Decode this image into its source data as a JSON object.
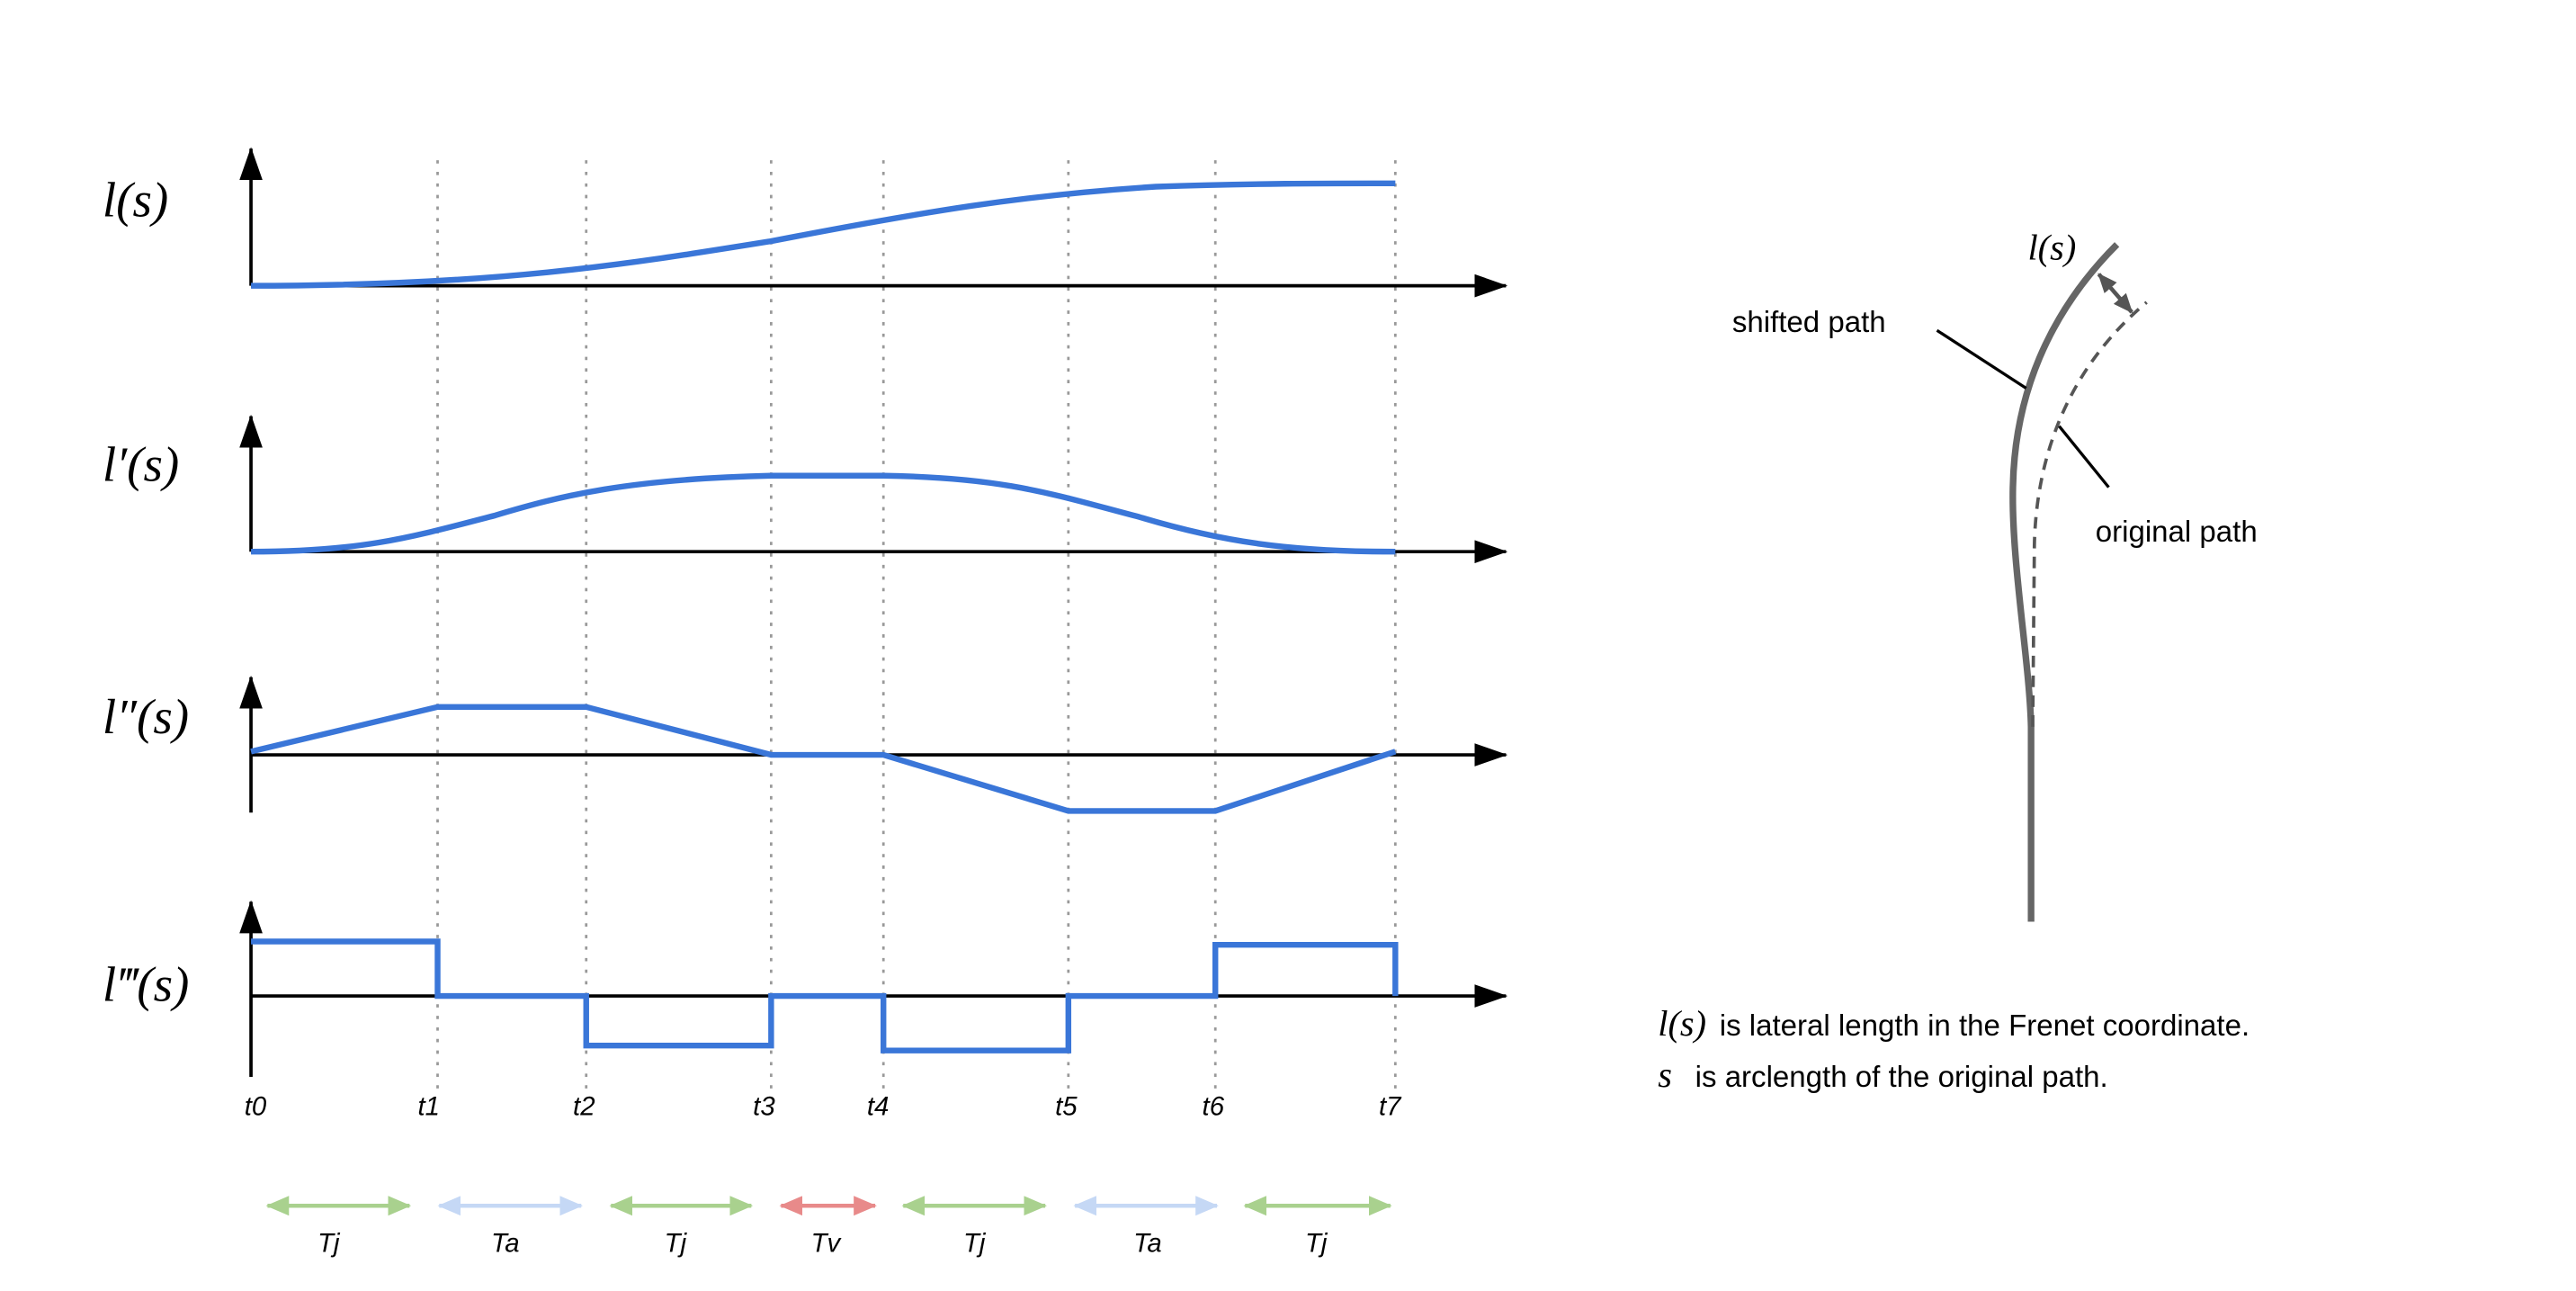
{
  "panels": [
    {
      "label": "l(s)"
    },
    {
      "label": "l′(s)"
    },
    {
      "label": "l″(s)"
    },
    {
      "label": "l‴(s)"
    }
  ],
  "time_ticks": [
    "t0",
    "t1",
    "t2",
    "t3",
    "t4",
    "t5",
    "t6",
    "t7"
  ],
  "segments": [
    "Tj",
    "Ta",
    "Tj",
    "Tv",
    "Tj",
    "Ta",
    "Tj"
  ],
  "path_diagram": {
    "offset_label": "l(s)",
    "shifted_label": "shifted path",
    "original_label": "original path"
  },
  "captions": [
    {
      "symbol": "l(s)",
      "text": "is lateral length in the Frenet coordinate."
    },
    {
      "symbol": "s",
      "text": "is arclength of the original path."
    }
  ]
}
